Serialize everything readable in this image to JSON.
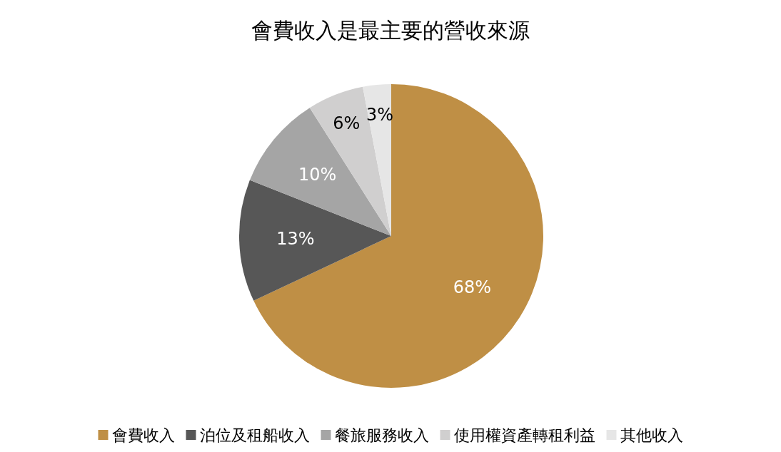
{
  "chart_data": {
    "type": "pie",
    "title": "會費收入是最主要的營收來源",
    "categories": [
      "會費收入",
      "泊位及租船收入",
      "餐旅服務收入",
      "使用權資產轉租利益",
      "其他收入"
    ],
    "values": [
      68,
      13,
      10,
      6,
      3
    ],
    "value_labels": [
      "68%",
      "13%",
      "10%",
      "6%",
      "3%"
    ],
    "colors": [
      "#bf8f45",
      "#575757",
      "#a5a5a5",
      "#d0cfcf",
      "#e6e6e6"
    ],
    "legend": "bottom"
  }
}
